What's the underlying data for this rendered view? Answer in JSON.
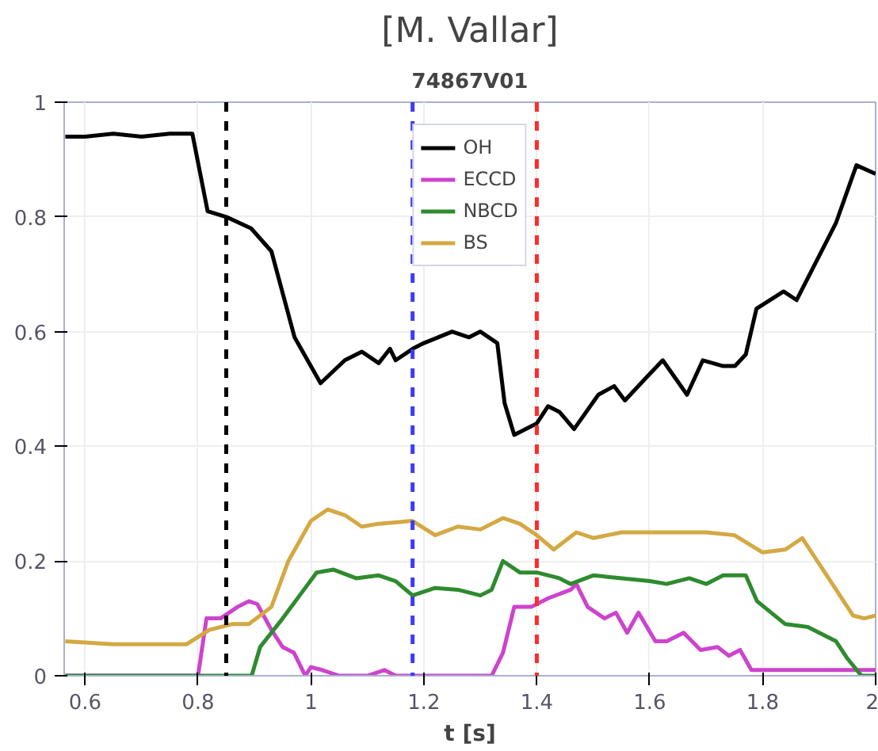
{
  "chart_data": {
    "type": "line",
    "title": "[M. Vallar]",
    "subtitle": "74867V01",
    "xlabel": "t [s]",
    "xlim": [
      0.563,
      2.0
    ],
    "ylim": [
      0,
      1
    ],
    "xticks": [
      0.6,
      0.8,
      {
        "value": 1,
        "label": "1"
      },
      1.2,
      1.4,
      1.6,
      1.8,
      {
        "value": 2,
        "label": "2"
      }
    ],
    "yticks": [
      {
        "value": 0,
        "label": "0"
      },
      0.2,
      0.4,
      0.6,
      0.8,
      {
        "value": 1,
        "label": "1"
      }
    ],
    "grid": true,
    "legend": "top",
    "line_style": "solid",
    "marker": "none",
    "ref_lines": [
      {
        "axis": "x",
        "value": 0.85,
        "color": "#000000",
        "line_style": "dashed"
      },
      {
        "axis": "x",
        "value": 1.18,
        "color": "#3b3bff",
        "line_style": "dashed"
      },
      {
        "axis": "x",
        "value": 1.4,
        "color": "#ff2b2b",
        "line_style": "dashed"
      }
    ],
    "series": [
      {
        "name": "OH",
        "color": "#000000",
        "x": [
          0.565,
          0.6,
          0.65,
          0.7,
          0.75,
          0.79,
          0.817,
          0.85,
          0.894,
          0.93,
          0.971,
          1.017,
          1.06,
          1.09,
          1.12,
          1.14,
          1.15,
          1.18,
          1.2,
          1.25,
          1.28,
          1.3,
          1.33,
          1.343,
          1.36,
          1.38,
          1.4,
          1.42,
          1.44,
          1.466,
          1.509,
          1.537,
          1.556,
          1.594,
          1.623,
          1.666,
          1.694,
          1.73,
          1.751,
          1.77,
          1.789,
          1.837,
          1.86,
          1.93,
          1.966,
          2.0
        ],
        "values": [
          0.94,
          0.94,
          0.945,
          0.94,
          0.945,
          0.945,
          0.81,
          0.8,
          0.78,
          0.74,
          0.59,
          0.51,
          0.55,
          0.565,
          0.545,
          0.57,
          0.55,
          0.57,
          0.58,
          0.6,
          0.59,
          0.6,
          0.58,
          0.475,
          0.42,
          0.43,
          0.44,
          0.47,
          0.46,
          0.43,
          0.49,
          0.505,
          0.48,
          0.52,
          0.55,
          0.49,
          0.55,
          0.54,
          0.54,
          0.56,
          0.64,
          0.67,
          0.655,
          0.79,
          0.89,
          0.875
        ]
      },
      {
        "name": "ECCD",
        "color": "#cc44cc",
        "x": [
          0.565,
          0.8,
          0.815,
          0.84,
          0.87,
          0.89,
          0.905,
          0.93,
          0.95,
          0.97,
          0.99,
          1.0,
          1.02,
          1.05,
          1.1,
          1.13,
          1.15,
          1.32,
          1.34,
          1.36,
          1.39,
          1.42,
          1.46,
          1.47,
          1.49,
          1.52,
          1.54,
          1.56,
          1.58,
          1.61,
          1.63,
          1.66,
          1.69,
          1.72,
          1.74,
          1.76,
          1.78,
          2.0
        ],
        "values": [
          0,
          0,
          0.1,
          0.1,
          0.12,
          0.13,
          0.125,
          0.08,
          0.05,
          0.04,
          0,
          0.015,
          0.01,
          0,
          0,
          0.01,
          0,
          0,
          0.04,
          0.12,
          0.12,
          0.135,
          0.15,
          0.16,
          0.12,
          0.1,
          0.11,
          0.075,
          0.11,
          0.06,
          0.06,
          0.075,
          0.045,
          0.05,
          0.035,
          0.045,
          0.01,
          0.01
        ]
      },
      {
        "name": "NBCD",
        "color": "#2e8b2e",
        "x": [
          0.565,
          0.895,
          0.91,
          0.95,
          0.98,
          1.01,
          1.04,
          1.08,
          1.12,
          1.15,
          1.18,
          1.22,
          1.26,
          1.3,
          1.32,
          1.34,
          1.37,
          1.4,
          1.44,
          1.46,
          1.5,
          1.55,
          1.6,
          1.63,
          1.67,
          1.7,
          1.73,
          1.77,
          1.79,
          1.84,
          1.88,
          1.93,
          1.95,
          1.975,
          2.0
        ],
        "values": [
          0,
          0,
          0.05,
          0.1,
          0.14,
          0.18,
          0.185,
          0.17,
          0.175,
          0.165,
          0.14,
          0.153,
          0.15,
          0.14,
          0.15,
          0.2,
          0.18,
          0.18,
          0.17,
          0.16,
          0.175,
          0.17,
          0.165,
          0.16,
          0.17,
          0.16,
          0.175,
          0.175,
          0.13,
          0.09,
          0.085,
          0.06,
          0.03,
          0,
          0
        ]
      },
      {
        "name": "BS",
        "color": "#d4a843",
        "x": [
          0.565,
          0.65,
          0.78,
          0.82,
          0.86,
          0.89,
          0.93,
          0.96,
          1.0,
          1.03,
          1.06,
          1.09,
          1.12,
          1.18,
          1.22,
          1.26,
          1.3,
          1.34,
          1.37,
          1.4,
          1.43,
          1.47,
          1.5,
          1.55,
          1.6,
          1.65,
          1.7,
          1.75,
          1.8,
          1.84,
          1.87,
          1.91,
          1.93,
          1.96,
          1.98,
          2.0
        ],
        "values": [
          0.06,
          0.055,
          0.055,
          0.08,
          0.09,
          0.09,
          0.12,
          0.2,
          0.27,
          0.29,
          0.28,
          0.26,
          0.265,
          0.27,
          0.245,
          0.26,
          0.255,
          0.275,
          0.265,
          0.245,
          0.22,
          0.25,
          0.24,
          0.25,
          0.25,
          0.25,
          0.25,
          0.245,
          0.215,
          0.22,
          0.24,
          0.18,
          0.15,
          0.105,
          0.1,
          0.105
        ]
      }
    ]
  }
}
